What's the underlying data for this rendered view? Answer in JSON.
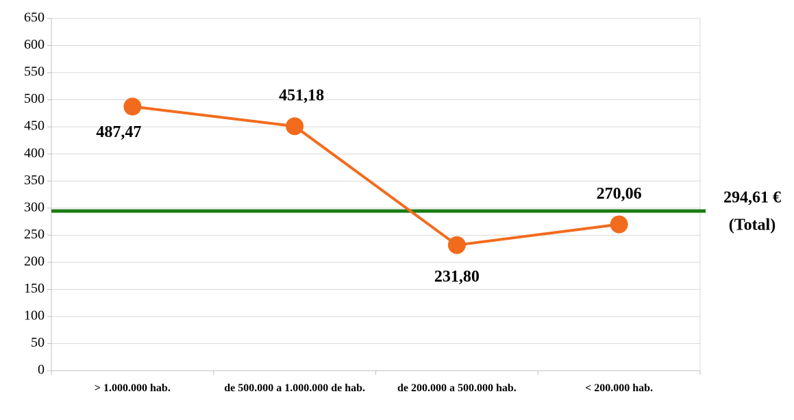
{
  "chart_data": {
    "type": "line",
    "categories": [
      "> 1.000.000 hab.",
      "de 500.000 a 1.000.000 de hab.",
      "de 200.000 a 500.000 hab.",
      "< 200.000 hab."
    ],
    "series": [
      {
        "color": "#f26b1d",
        "values": [
          487.47,
          451.18,
          231.8,
          270.06
        ],
        "value_labels": [
          "487,47",
          "451,18",
          "231,80",
          "270,06"
        ]
      }
    ],
    "reference_line": {
      "value": 294.61,
      "color": "#1a7a12",
      "label_lines": [
        "294,61 €",
        "(Total)"
      ]
    },
    "ylim": [
      0,
      650
    ],
    "yticks": [
      0,
      50,
      100,
      150,
      200,
      250,
      300,
      350,
      400,
      450,
      500,
      550,
      600,
      650
    ],
    "grid": true
  }
}
